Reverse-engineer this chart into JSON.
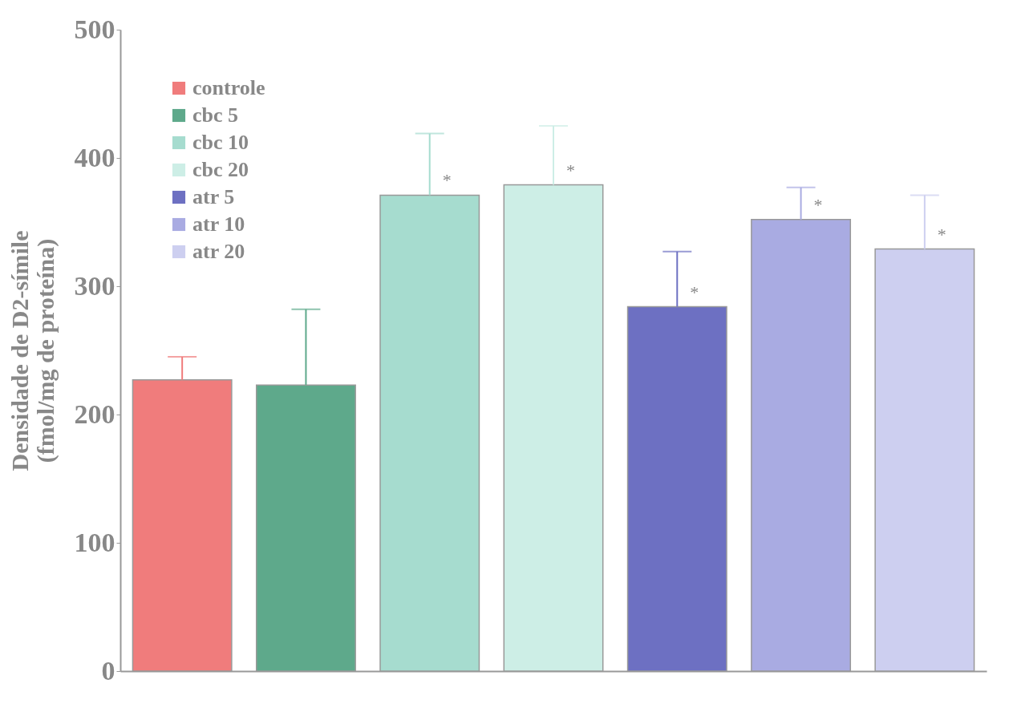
{
  "chart_data": {
    "type": "bar",
    "ylabel": "Densidade de D2-símile\n(fmol/mg de proteína)",
    "categories": [
      null,
      null,
      null,
      null,
      null,
      null,
      null
    ],
    "series": [
      {
        "name": "controle",
        "color": "#f07c7c",
        "values": [
          227,
          null,
          null,
          null,
          null,
          null,
          null
        ],
        "errors": [
          [
            227,
            245
          ],
          null,
          null,
          null,
          null,
          null,
          null
        ]
      },
      {
        "name": "cbc  5",
        "color": "#5ea98b",
        "values": [
          null,
          223,
          null,
          null,
          null,
          null,
          null
        ],
        "errors": [
          null,
          [
            223,
            282
          ],
          null,
          null,
          null,
          null,
          null
        ]
      },
      {
        "name": "cbc  10",
        "color": "#a6dccf",
        "values": [
          null,
          null,
          371,
          null,
          null,
          null,
          null
        ],
        "errors": [
          null,
          null,
          [
            371,
            419
          ],
          null,
          null,
          null,
          null
        ],
        "value_labels": [
          null,
          null,
          "*",
          null,
          null,
          null,
          null
        ]
      },
      {
        "name": "cbc  20",
        "color": "#cdeee6",
        "values": [
          null,
          null,
          null,
          379,
          null,
          null,
          null
        ],
        "errors": [
          null,
          null,
          null,
          [
            379,
            425
          ],
          null,
          null,
          null
        ],
        "value_labels": [
          null,
          null,
          null,
          "*",
          null,
          null,
          null
        ]
      },
      {
        "name": "atr  5",
        "color": "#6d70c2",
        "values": [
          null,
          null,
          null,
          null,
          284,
          null,
          null
        ],
        "errors": [
          null,
          null,
          null,
          null,
          [
            284,
            327
          ],
          null,
          null
        ],
        "value_labels": [
          null,
          null,
          null,
          null,
          "*",
          null,
          null
        ]
      },
      {
        "name": "atr  10",
        "color": "#a9abe2",
        "values": [
          null,
          null,
          null,
          null,
          null,
          352,
          null
        ],
        "errors": [
          null,
          null,
          null,
          null,
          null,
          [
            352,
            377
          ],
          null
        ],
        "value_labels": [
          null,
          null,
          null,
          null,
          null,
          "*",
          null
        ]
      },
      {
        "name": "atr  20",
        "color": "#cdcff0",
        "values": [
          null,
          null,
          null,
          null,
          null,
          null,
          329
        ],
        "errors": [
          null,
          null,
          null,
          null,
          null,
          null,
          [
            329,
            371
          ]
        ],
        "value_labels": [
          null,
          null,
          null,
          null,
          null,
          null,
          "*"
        ]
      }
    ],
    "ylim": [
      0,
      500
    ],
    "yticks": [
      0,
      100,
      200,
      300,
      400,
      500
    ],
    "tick_labels": "y",
    "legend": "top left"
  }
}
